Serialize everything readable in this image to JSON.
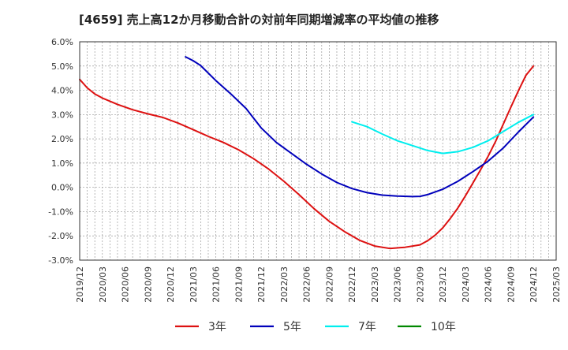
{
  "chart_data": {
    "type": "line",
    "title": "[4659]  売上高12か月移動合計の対前年同期増減率の平均値の推移",
    "xlabel": "",
    "ylabel": "",
    "ylim": [
      -3.0,
      6.0
    ],
    "yticks": [
      "6.0%",
      "5.0%",
      "4.0%",
      "3.0%",
      "2.0%",
      "1.0%",
      "0.0%",
      "-1.0%",
      "-2.0%",
      "-3.0%"
    ],
    "xticks": [
      "2019/12",
      "2020/03",
      "2020/06",
      "2020/09",
      "2020/12",
      "2021/03",
      "2021/06",
      "2021/09",
      "2021/12",
      "2022/03",
      "2022/06",
      "2022/09",
      "2022/12",
      "2023/03",
      "2023/06",
      "2023/09",
      "2023/12",
      "2024/03",
      "2024/06",
      "2024/09",
      "2024/12",
      "2025/03"
    ],
    "grid": true,
    "legend_position": "bottom",
    "series": [
      {
        "name": "3年",
        "color": "#dd1111",
        "points": [
          [
            "2019/12",
            4.45
          ],
          [
            "2020/01",
            4.1
          ],
          [
            "2020/02",
            3.85
          ],
          [
            "2020/03",
            3.68
          ],
          [
            "2020/05",
            3.42
          ],
          [
            "2020/07",
            3.2
          ],
          [
            "2020/09",
            3.03
          ],
          [
            "2020/11",
            2.88
          ],
          [
            "2021/01",
            2.65
          ],
          [
            "2021/03",
            2.38
          ],
          [
            "2021/05",
            2.1
          ],
          [
            "2021/07",
            1.85
          ],
          [
            "2021/09",
            1.55
          ],
          [
            "2021/11",
            1.18
          ],
          [
            "2022/01",
            0.75
          ],
          [
            "2022/03",
            0.25
          ],
          [
            "2022/05",
            -0.3
          ],
          [
            "2022/07",
            -0.88
          ],
          [
            "2022/09",
            -1.4
          ],
          [
            "2022/11",
            -1.82
          ],
          [
            "2023/01",
            -2.18
          ],
          [
            "2023/03",
            -2.42
          ],
          [
            "2023/05",
            -2.52
          ],
          [
            "2023/07",
            -2.47
          ],
          [
            "2023/09",
            -2.37
          ],
          [
            "2023/10",
            -2.2
          ],
          [
            "2023/11",
            -1.97
          ],
          [
            "2023/12",
            -1.67
          ],
          [
            "2024/01",
            -1.28
          ],
          [
            "2024/02",
            -0.85
          ],
          [
            "2024/03",
            -0.35
          ],
          [
            "2024/04",
            0.18
          ],
          [
            "2024/05",
            0.72
          ],
          [
            "2024/06",
            1.28
          ],
          [
            "2024/07",
            1.9
          ],
          [
            "2024/08",
            2.6
          ],
          [
            "2024/09",
            3.3
          ],
          [
            "2024/10",
            3.98
          ],
          [
            "2024/11",
            4.62
          ],
          [
            "2024/12",
            5.0
          ]
        ]
      },
      {
        "name": "5年",
        "color": "#0000bb",
        "points": [
          [
            "2021/02",
            5.38
          ],
          [
            "2021/03",
            5.22
          ],
          [
            "2021/04",
            5.02
          ],
          [
            "2021/06",
            4.4
          ],
          [
            "2021/08",
            3.85
          ],
          [
            "2021/10",
            3.25
          ],
          [
            "2021/12",
            2.45
          ],
          [
            "2022/02",
            1.85
          ],
          [
            "2022/04",
            1.4
          ],
          [
            "2022/06",
            0.95
          ],
          [
            "2022/08",
            0.55
          ],
          [
            "2022/10",
            0.2
          ],
          [
            "2022/12",
            -0.05
          ],
          [
            "2023/02",
            -0.22
          ],
          [
            "2023/04",
            -0.32
          ],
          [
            "2023/06",
            -0.36
          ],
          [
            "2023/08",
            -0.38
          ],
          [
            "2023/09",
            -0.37
          ],
          [
            "2023/10",
            -0.3
          ],
          [
            "2023/12",
            -0.08
          ],
          [
            "2024/02",
            0.25
          ],
          [
            "2024/04",
            0.65
          ],
          [
            "2024/06",
            1.08
          ],
          [
            "2024/08",
            1.62
          ],
          [
            "2024/10",
            2.28
          ],
          [
            "2024/12",
            2.9
          ]
        ]
      },
      {
        "name": "7年",
        "color": "#00eeee",
        "points": [
          [
            "2022/12",
            2.7
          ],
          [
            "2023/02",
            2.5
          ],
          [
            "2023/04",
            2.2
          ],
          [
            "2023/06",
            1.92
          ],
          [
            "2023/08",
            1.72
          ],
          [
            "2023/10",
            1.52
          ],
          [
            "2023/12",
            1.4
          ],
          [
            "2024/02",
            1.47
          ],
          [
            "2024/04",
            1.65
          ],
          [
            "2024/06",
            1.92
          ],
          [
            "2024/08",
            2.3
          ],
          [
            "2024/10",
            2.68
          ],
          [
            "2024/12",
            3.0
          ]
        ]
      },
      {
        "name": "10年",
        "color": "#008800",
        "points": []
      }
    ]
  }
}
